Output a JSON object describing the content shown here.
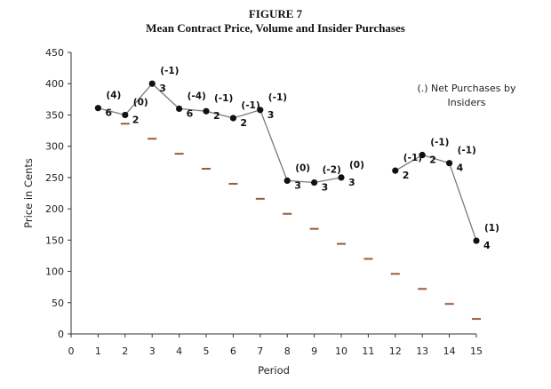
{
  "figure": {
    "number": "FIGURE 7",
    "title": "Mean Contract Price, Volume and Insider Purchases"
  },
  "chart_data": {
    "type": "line",
    "xlabel": "Period",
    "ylabel": "Price in Cents",
    "xlim": [
      0,
      15
    ],
    "ylim": [
      0,
      450
    ],
    "x_ticks": [
      "0",
      "1",
      "2",
      "3",
      "4",
      "5",
      "6",
      "7",
      "8",
      "9",
      "10",
      "11",
      "12",
      "13",
      "14",
      "15"
    ],
    "y_ticks": [
      "0",
      "50",
      "100",
      "150",
      "200",
      "250",
      "300",
      "350",
      "400",
      "450"
    ],
    "grid": false,
    "legend": {
      "text_line1": "(.) Net Purchases by",
      "text_line2": "Insiders",
      "position": "top-right"
    },
    "colors": {
      "price_line": "#6e7f7a",
      "price_marker": "#111111",
      "dividend_marker": "#9b5a35"
    },
    "series": [
      {
        "type": "line",
        "points": [
          {
            "x": 1,
            "y": 361,
            "volume": "6",
            "insider": "(4)"
          },
          {
            "x": 2,
            "y": 350,
            "volume": "2",
            "insider": "(0)"
          },
          {
            "x": 3,
            "y": 400,
            "volume": "3",
            "insider": "(-1)"
          },
          {
            "x": 4,
            "y": 360,
            "volume": "6",
            "insider": "(-4)"
          },
          {
            "x": 5,
            "y": 356,
            "volume": "2",
            "insider": "(-1)"
          },
          {
            "x": 6,
            "y": 345,
            "volume": "2",
            "insider": "(-1)"
          },
          {
            "x": 7,
            "y": 358,
            "volume": "3",
            "insider": "(-1)"
          },
          {
            "x": 8,
            "y": 245,
            "volume": "3",
            "insider": "(0)"
          },
          {
            "x": 9,
            "y": 242,
            "volume": "3",
            "insider": "(-2)"
          },
          {
            "x": 10,
            "y": 250,
            "volume": "3",
            "insider": "(0)"
          }
        ]
      },
      {
        "type": "line",
        "points": [
          {
            "x": 12,
            "y": 261,
            "volume": "2",
            "insider": "(-1)"
          },
          {
            "x": 13,
            "y": 286,
            "volume": "2",
            "insider": "(-1)"
          },
          {
            "x": 14,
            "y": 273,
            "volume": "4",
            "insider": "(-1)"
          },
          {
            "x": 15,
            "y": 149,
            "volume": "4",
            "insider": "(1)"
          }
        ]
      },
      {
        "type": "scatter",
        "marker": "dash",
        "points": [
          {
            "x": 2,
            "y": 336
          },
          {
            "x": 3,
            "y": 312
          },
          {
            "x": 4,
            "y": 288
          },
          {
            "x": 5,
            "y": 264
          },
          {
            "x": 6,
            "y": 240
          },
          {
            "x": 7,
            "y": 216
          },
          {
            "x": 8,
            "y": 192
          },
          {
            "x": 9,
            "y": 168
          },
          {
            "x": 10,
            "y": 144
          },
          {
            "x": 11,
            "y": 120
          },
          {
            "x": 12,
            "y": 96
          },
          {
            "x": 13,
            "y": 72
          },
          {
            "x": 14,
            "y": 48
          },
          {
            "x": 15,
            "y": 24
          }
        ]
      }
    ]
  }
}
